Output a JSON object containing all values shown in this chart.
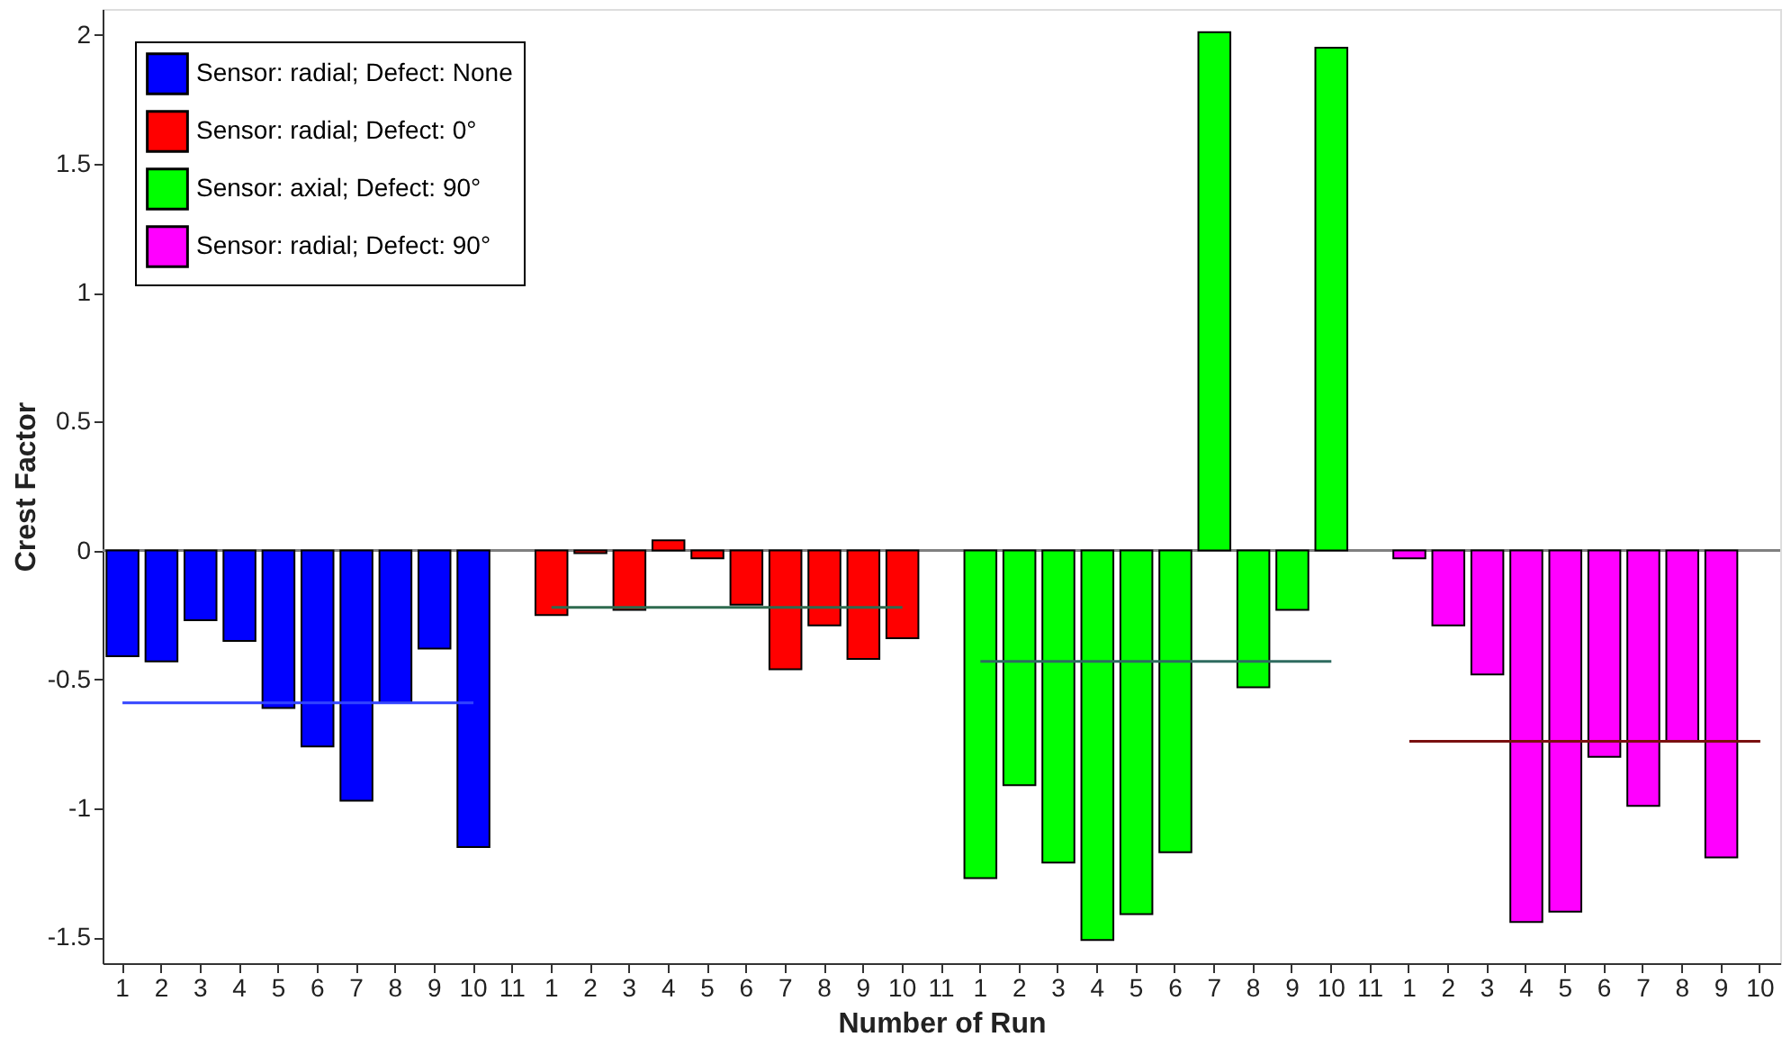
{
  "chart_data": {
    "type": "bar",
    "xlabel": "Number of Run",
    "ylabel": "Crest Factor",
    "categories": [
      "1",
      "2",
      "3",
      "4",
      "5",
      "6",
      "7",
      "8",
      "9",
      "10",
      "11",
      "1",
      "2",
      "3",
      "4",
      "5",
      "6",
      "7",
      "8",
      "9",
      "10",
      "11",
      "1",
      "2",
      "3",
      "4",
      "5",
      "6",
      "7",
      "8",
      "9",
      "10",
      "11",
      "1",
      "2",
      "3",
      "4",
      "5",
      "6",
      "7",
      "8",
      "9",
      "10"
    ],
    "series": [
      {
        "name": "Sensor: radial; Defect: None",
        "color": "#0000ff",
        "values": [
          -0.41,
          -0.43,
          -0.27,
          -0.35,
          -0.61,
          -0.76,
          -0.97,
          -0.59,
          -0.38,
          -1.15,
          null,
          null,
          null,
          null,
          null,
          null,
          null,
          null,
          null,
          null,
          null,
          null,
          null,
          null,
          null,
          null,
          null,
          null,
          null,
          null,
          null,
          null,
          null,
          null,
          null,
          null,
          null,
          null,
          null,
          null,
          null,
          null,
          null
        ]
      },
      {
        "name": "Sensor: radial; Defect: 0°",
        "color": "#ff0000",
        "values": [
          null,
          null,
          null,
          null,
          null,
          null,
          null,
          null,
          null,
          null,
          null,
          -0.25,
          -0.01,
          -0.23,
          0.04,
          -0.03,
          -0.21,
          -0.46,
          -0.29,
          -0.42,
          -0.34,
          null,
          null,
          null,
          null,
          null,
          null,
          null,
          null,
          null,
          null,
          null,
          null,
          null,
          null,
          null,
          null,
          null,
          null,
          null,
          null,
          null,
          null
        ]
      },
      {
        "name": "Sensor: axial; Defect: 90°",
        "color": "#00ff00",
        "values": [
          null,
          null,
          null,
          null,
          null,
          null,
          null,
          null,
          null,
          null,
          null,
          null,
          null,
          null,
          null,
          null,
          null,
          null,
          null,
          null,
          null,
          null,
          -1.27,
          -0.91,
          -1.21,
          -1.51,
          -1.41,
          -1.17,
          2.01,
          -0.53,
          -0.23,
          1.95,
          null,
          null,
          null,
          null,
          null,
          null,
          null,
          null,
          null,
          null,
          null
        ]
      },
      {
        "name": "Sensor: radial; Defect: 90°",
        "color": "#ff00ff",
        "values": [
          null,
          null,
          null,
          null,
          null,
          null,
          null,
          null,
          null,
          null,
          null,
          null,
          null,
          null,
          null,
          null,
          null,
          null,
          null,
          null,
          null,
          null,
          null,
          null,
          null,
          null,
          null,
          null,
          null,
          null,
          null,
          null,
          null,
          -0.03,
          -0.29,
          -0.48,
          -1.44,
          -1.4,
          -0.8,
          -0.99,
          -0.74,
          -1.19,
          null
        ]
      },
      {
        "type": "line",
        "color": "#3344ff",
        "values": [
          -0.59,
          -0.59,
          -0.59,
          -0.59,
          -0.59,
          -0.59,
          -0.59,
          -0.59,
          -0.59,
          -0.59,
          null,
          null,
          null,
          null,
          null,
          null,
          null,
          null,
          null,
          null,
          null,
          null,
          null,
          null,
          null,
          null,
          null,
          null,
          null,
          null,
          null,
          null,
          null,
          null,
          null,
          null,
          null,
          null,
          null,
          null,
          null,
          null,
          null
        ]
      },
      {
        "type": "line",
        "color": "#2e6b4f",
        "values": [
          null,
          null,
          null,
          null,
          null,
          null,
          null,
          null,
          null,
          null,
          null,
          -0.22,
          -0.22,
          -0.22,
          -0.22,
          -0.22,
          -0.22,
          -0.22,
          -0.22,
          -0.22,
          -0.22,
          null,
          null,
          null,
          null,
          null,
          null,
          null,
          null,
          null,
          null,
          null,
          null,
          null,
          null,
          null,
          null,
          null,
          null,
          null,
          null,
          null,
          null
        ]
      },
      {
        "type": "line",
        "color": "#2e6b5f",
        "values": [
          null,
          null,
          null,
          null,
          null,
          null,
          null,
          null,
          null,
          null,
          null,
          null,
          null,
          null,
          null,
          null,
          null,
          null,
          null,
          null,
          null,
          null,
          -0.43,
          -0.43,
          -0.43,
          -0.43,
          -0.43,
          -0.43,
          -0.43,
          -0.43,
          -0.43,
          -0.43,
          null,
          null,
          null,
          null,
          null,
          null,
          null,
          null,
          null,
          null,
          null
        ]
      },
      {
        "type": "line",
        "color": "#7a1010",
        "values": [
          null,
          null,
          null,
          null,
          null,
          null,
          null,
          null,
          null,
          null,
          null,
          null,
          null,
          null,
          null,
          null,
          null,
          null,
          null,
          null,
          null,
          null,
          null,
          null,
          null,
          null,
          null,
          null,
          null,
          null,
          null,
          null,
          null,
          -0.74,
          -0.74,
          -0.74,
          -0.74,
          -0.74,
          -0.74,
          -0.74,
          -0.74,
          -0.74,
          -0.74
        ]
      }
    ],
    "ylim": [
      -1.6,
      2.1
    ],
    "yticks": [
      -1.5,
      -1,
      -0.5,
      0,
      0.5,
      1,
      1.5,
      2
    ],
    "ref_lines": [
      {
        "axis": "y",
        "value": 0,
        "color": "#808080"
      }
    ],
    "grid": false,
    "legend": "top left"
  }
}
